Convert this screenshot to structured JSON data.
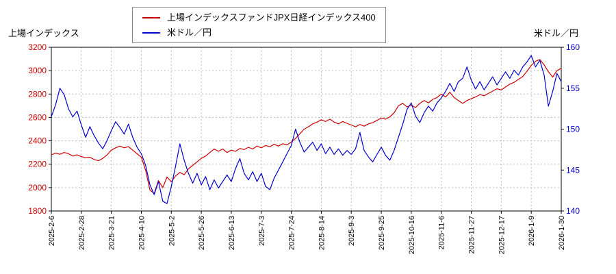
{
  "legend": {
    "items": [
      {
        "label": "上場インデックスファンドJPX日経インデックス400",
        "color": "#cc0000"
      },
      {
        "label": "米ドル／円",
        "color": "#0000cc"
      }
    ]
  },
  "axes": {
    "left_title": "上場インデックス",
    "right_title": "米ドル／円"
  },
  "chart_data": {
    "type": "line",
    "grid": true,
    "legend_position": "top-center",
    "plot_border_color": "#000000",
    "grid_color": "#bbbbbb",
    "x_labels": [
      "2025-2-6",
      "2025-2-28",
      "2025-3-21",
      "2025-4-10",
      "2025-5-2",
      "2025-5-26",
      "2025-6-13",
      "2025-7-3",
      "2025-7-24",
      "2025-8-14",
      "2025-9-3",
      "2025-9-25",
      "2025-10-16",
      "2025-11-6",
      "2025-11-27",
      "2025-12-17",
      "2026-1-9",
      "2026-1-30"
    ],
    "left_axis": {
      "label": "上場インデックス",
      "range": [
        1800,
        3200
      ],
      "tick_step": 200,
      "color": "#cc0000"
    },
    "right_axis": {
      "label": "米ドル／円",
      "range": [
        140,
        160
      ],
      "tick_step": 5,
      "color": "#0000cc"
    },
    "series": [
      {
        "name": "上場インデックスファンドJPX日経インデックス400",
        "axis": "left",
        "color": "#cc0000",
        "values": [
          2280,
          2295,
          2285,
          2300,
          2290,
          2270,
          2280,
          2265,
          2255,
          2260,
          2240,
          2230,
          2250,
          2280,
          2320,
          2340,
          2355,
          2340,
          2350,
          2320,
          2290,
          2260,
          2150,
          1980,
          1950,
          2060,
          2000,
          2090,
          2050,
          2100,
          2130,
          2110,
          2160,
          2190,
          2220,
          2250,
          2270,
          2300,
          2330,
          2310,
          2330,
          2300,
          2320,
          2310,
          2335,
          2325,
          2345,
          2330,
          2355,
          2340,
          2360,
          2350,
          2370,
          2355,
          2375,
          2365,
          2390,
          2420,
          2460,
          2500,
          2520,
          2545,
          2560,
          2580,
          2565,
          2585,
          2560,
          2545,
          2565,
          2550,
          2535,
          2520,
          2540,
          2525,
          2545,
          2555,
          2575,
          2595,
          2585,
          2605,
          2640,
          2700,
          2720,
          2690,
          2705,
          2685,
          2720,
          2745,
          2725,
          2755,
          2770,
          2800,
          2775,
          2815,
          2770,
          2745,
          2720,
          2745,
          2760,
          2775,
          2795,
          2785,
          2805,
          2825,
          2845,
          2835,
          2860,
          2885,
          2900,
          2925,
          2950,
          2995,
          3045,
          3080,
          3095,
          3050,
          2990,
          2945,
          3000,
          3020
        ]
      },
      {
        "name": "米ドル／円",
        "axis": "right",
        "color": "#0000cc",
        "values": [
          151.5,
          153.0,
          155.0,
          154.2,
          152.5,
          151.5,
          152.2,
          150.5,
          149.0,
          150.3,
          149.2,
          148.3,
          147.6,
          148.6,
          149.8,
          150.9,
          150.2,
          149.4,
          150.6,
          149.0,
          147.8,
          147.0,
          145.6,
          143.2,
          142.0,
          143.6,
          141.2,
          140.9,
          143.0,
          145.5,
          148.2,
          146.2,
          144.6,
          143.4,
          144.6,
          143.2,
          144.2,
          142.6,
          143.8,
          142.8,
          143.6,
          144.4,
          143.6,
          145.2,
          146.4,
          144.6,
          143.8,
          144.8,
          143.6,
          144.6,
          143.0,
          142.6,
          144.0,
          145.0,
          146.0,
          147.0,
          148.0,
          150.0,
          148.4,
          147.2,
          147.8,
          148.4,
          147.4,
          148.2,
          147.0,
          147.8,
          146.9,
          147.6,
          146.8,
          147.4,
          146.9,
          147.6,
          149.6,
          147.4,
          146.6,
          146.0,
          146.9,
          147.8,
          146.8,
          146.2,
          147.4,
          149.0,
          150.6,
          152.4,
          153.2,
          151.6,
          150.8,
          152.0,
          152.8,
          152.2,
          153.2,
          153.8,
          154.6,
          155.6,
          154.6,
          155.8,
          156.2,
          157.6,
          156.0,
          154.9,
          155.8,
          154.8,
          155.6,
          156.4,
          155.4,
          156.2,
          157.0,
          156.2,
          157.2,
          156.6,
          157.6,
          158.2,
          159.0,
          157.6,
          158.4,
          156.6,
          152.8,
          154.6,
          156.8,
          155.8
        ]
      }
    ]
  }
}
